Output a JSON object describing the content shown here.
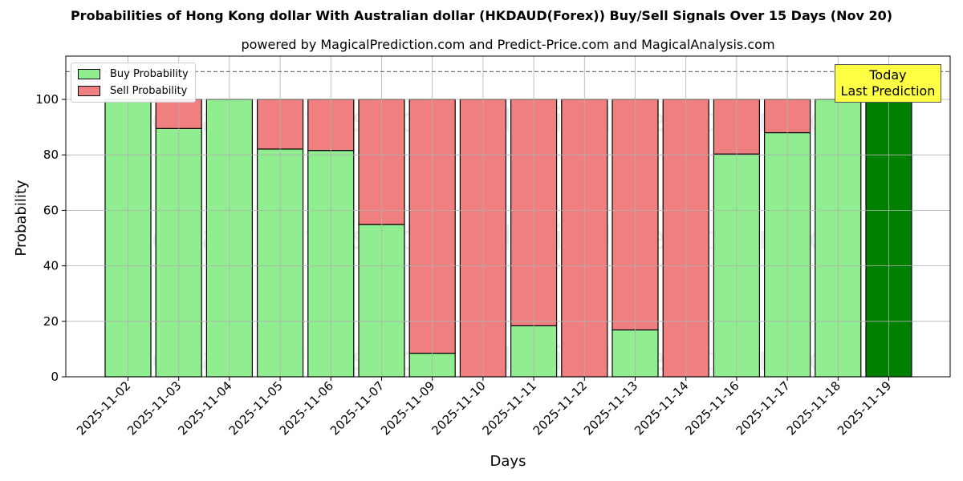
{
  "title": "Probabilities of Hong Kong dollar With Australian dollar (HKDAUD(Forex)) Buy/Sell Signals Over 15 Days (Nov 20)",
  "subtitle": "powered by MagicalPrediction.com and Predict-Price.com and MagicalAnalysis.com",
  "legend": {
    "buy": "Buy Probability",
    "sell": "Sell Probability"
  },
  "annotation": {
    "line1": "Today",
    "line2": "Last Prediction"
  },
  "watermarks": [
    "MagicalAnalysis.com",
    "MagicalPrediction.com"
  ],
  "colors": {
    "buy": "#90ee90",
    "sell": "#f08080",
    "today": "#008000",
    "annotation_bg": "#ffff44"
  },
  "chart_data": {
    "type": "bar",
    "stacked": true,
    "title": "Probabilities of Hong Kong dollar With Australian dollar (HKDAUD(Forex)) Buy/Sell Signals Over 15 Days (Nov 20)",
    "subtitle": "powered by MagicalPrediction.com and Predict-Price.com and MagicalAnalysis.com",
    "xlabel": "Days",
    "ylabel": "Probability",
    "ylim": [
      0,
      115
    ],
    "yticks": [
      0,
      20,
      40,
      60,
      80,
      100
    ],
    "reference_line": 110,
    "grid": true,
    "legend_position": "upper left",
    "categories": [
      "2025-11-02",
      "2025-11-03",
      "2025-11-04",
      "2025-11-05",
      "2025-11-06",
      "2025-11-07",
      "2025-11-09",
      "2025-11-10",
      "2025-11-11",
      "2025-11-12",
      "2025-11-13",
      "2025-11-14",
      "2025-11-16",
      "2025-11-17",
      "2025-11-18",
      "2025-11-19"
    ],
    "series": [
      {
        "name": "Buy Probability",
        "values": [
          100,
          89.5,
          100,
          82.1,
          81.6,
          54.9,
          8.5,
          0,
          18.4,
          0,
          16.9,
          0,
          80.3,
          88.0,
          100,
          100
        ]
      },
      {
        "name": "Sell Probability",
        "values": [
          0,
          10.5,
          0,
          17.9,
          18.4,
          45.1,
          91.5,
          100,
          81.6,
          100,
          83.1,
          100,
          19.7,
          12.0,
          0,
          0
        ]
      }
    ],
    "highlighted_last_bar": "2025-11-19"
  }
}
